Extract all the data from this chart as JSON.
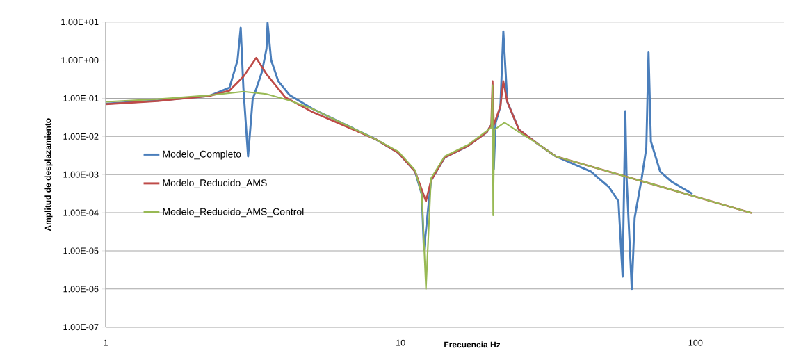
{
  "chart_data": {
    "type": "line",
    "xlabel": "Frecuencia Hz",
    "ylabel": "Amplitud de desplazamiento",
    "log": "xy",
    "xlim": [
      1,
      200
    ],
    "xticks": [
      1,
      10,
      100
    ],
    "ylim": [
      1e-07,
      10
    ],
    "yticks": [
      {
        "value": 10,
        "label": "1.00E+01"
      },
      {
        "value": 1,
        "label": "1.00E+00"
      },
      {
        "value": 0.1,
        "label": "1.00E-01"
      },
      {
        "value": 0.01,
        "label": "1.00E-02"
      },
      {
        "value": 0.001,
        "label": "1.00E-03"
      },
      {
        "value": 0.0001,
        "label": "1.00E-04"
      },
      {
        "value": 1e-05,
        "label": "1.00E-05"
      },
      {
        "value": 1e-06,
        "label": "1.00E-06"
      },
      {
        "value": 1e-07,
        "label": "1.00E-07"
      }
    ],
    "grid": "y",
    "legend": "left",
    "marker": "none",
    "line_style": "solid",
    "series": [
      {
        "name": "Modelo_Completo",
        "color": "#4a7ebb",
        "x": [
          1,
          1.5,
          2.24,
          2.63,
          2.8,
          2.87,
          2.93,
          3.04,
          3.15,
          3.39,
          3.51,
          3.54,
          3.64,
          3.85,
          4.21,
          5.05,
          8.22,
          9.84,
          11.2,
          11.8,
          12.0,
          12.68,
          14.1,
          16.9,
          19.6,
          20.3,
          20.5,
          20.7,
          21.0,
          21.8,
          22.3,
          23.0,
          25.2,
          29.1,
          33.6,
          44.2,
          51.0,
          54.8,
          56.6,
          57.8,
          58.4,
          60.8,
          62.2,
          65.7,
          68.1,
          69.3,
          70.6,
          75.9,
          83.0,
          97.7
        ],
        "values": [
          0.072,
          0.087,
          0.115,
          0.19,
          1.0,
          7.1,
          0.19,
          0.003,
          0.093,
          0.5,
          2.0,
          9.5,
          1.0,
          0.28,
          0.12,
          0.052,
          0.0085,
          0.0037,
          0.0012,
          0.0003,
          1.05e-05,
          0.0007,
          0.0028,
          0.0056,
          0.013,
          0.02,
          0.025,
          0.0014,
          0.023,
          0.062,
          5.7,
          0.081,
          0.015,
          0.0065,
          0.003,
          0.0012,
          0.00046,
          0.0002,
          2.1e-06,
          0.046,
          0.0008,
          1e-06,
          7.4e-05,
          0.0008,
          0.0049,
          1.6,
          0.0074,
          0.0012,
          0.00065,
          0.00031
        ]
      },
      {
        "name": "Modelo_Reducido_AMS",
        "color": "#be4b48",
        "x": [
          1,
          1.5,
          2.24,
          2.63,
          2.93,
          3.24,
          3.51,
          4.06,
          5.05,
          8.22,
          9.84,
          11.2,
          11.8,
          12.19,
          12.68,
          14.1,
          16.9,
          19.6,
          20.3,
          20.5,
          20.7,
          21.8,
          22.3,
          23.0,
          25.2,
          29.1,
          33.6,
          69.3,
          155
        ],
        "values": [
          0.07,
          0.085,
          0.115,
          0.16,
          0.37,
          1.15,
          0.43,
          0.107,
          0.043,
          0.0085,
          0.0037,
          0.0012,
          0.0004,
          0.0002,
          0.0007,
          0.0028,
          0.0056,
          0.013,
          0.02,
          0.28,
          0.02,
          0.062,
          0.28,
          0.081,
          0.015,
          0.0065,
          0.003,
          0.0006,
          9.8e-05
        ]
      },
      {
        "name": "Modelo_Reducido_AMS_Control",
        "color": "#98b954",
        "x": [
          1,
          1.5,
          2.24,
          2.93,
          3.51,
          4.21,
          5.05,
          8.22,
          9.84,
          11.2,
          11.8,
          12.19,
          12.68,
          14.1,
          16.9,
          19.6,
          20.3,
          20.5,
          20.6,
          20.8,
          22.5,
          25.2,
          29.1,
          33.6,
          69.3,
          155
        ],
        "values": [
          0.081,
          0.095,
          0.12,
          0.15,
          0.13,
          0.087,
          0.052,
          0.0085,
          0.004,
          0.0013,
          0.0003,
          1e-06,
          0.0008,
          0.003,
          0.006,
          0.014,
          0.017,
          0.22,
          8.5e-05,
          0.015,
          0.023,
          0.013,
          0.0065,
          0.003,
          0.0006,
          9.8e-05
        ]
      }
    ]
  }
}
